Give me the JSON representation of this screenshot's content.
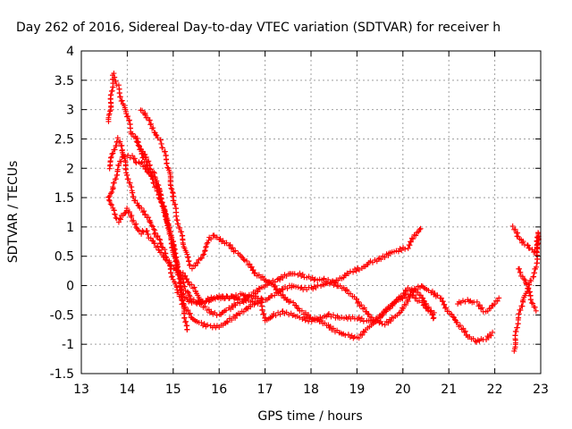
{
  "chart_data": {
    "type": "scatter",
    "title": "Day 262 of 2016, Sidereal Day-to-day VTEC variation (SDTVAR) for receiver h",
    "xlabel": "GPS time / hours",
    "ylabel": "SDTVAR / TECUs",
    "xlim": [
      13,
      23
    ],
    "ylim": [
      -1.5,
      4
    ],
    "xticks": [
      "13",
      "14",
      "15",
      "16",
      "17",
      "18",
      "19",
      "20",
      "21",
      "22",
      "23"
    ],
    "yticks": [
      "-1.5",
      "-1",
      "-0.5",
      "0",
      "0.5",
      "1",
      "1.5",
      "2",
      "2.5",
      "3",
      "3.5",
      "4"
    ],
    "grid": true,
    "marker": "+",
    "color": "#ff0000",
    "tracks": [
      [
        [
          13.6,
          2.8
        ],
        [
          13.7,
          3.6
        ],
        [
          13.8,
          3.4
        ],
        [
          13.9,
          3.1
        ],
        [
          14.0,
          2.9
        ],
        [
          14.1,
          2.6
        ],
        [
          14.2,
          2.5
        ],
        [
          14.3,
          2.3
        ],
        [
          14.4,
          2.1
        ],
        [
          14.5,
          1.9
        ],
        [
          14.6,
          1.7
        ],
        [
          14.7,
          1.5
        ],
        [
          14.8,
          1.3
        ],
        [
          14.9,
          1.0
        ],
        [
          15.0,
          0.7
        ],
        [
          15.05,
          0.5
        ],
        [
          15.1,
          0.2
        ],
        [
          15.2,
          -0.2
        ],
        [
          15.25,
          -0.5
        ],
        [
          15.3,
          -0.8
        ]
      ],
      [
        [
          13.6,
          1.5
        ],
        [
          13.7,
          1.7
        ],
        [
          13.8,
          2.0
        ],
        [
          13.9,
          2.2
        ],
        [
          14.0,
          2.2
        ],
        [
          14.1,
          2.2
        ],
        [
          14.2,
          2.1
        ],
        [
          14.3,
          2.1
        ],
        [
          14.4,
          2.0
        ],
        [
          14.5,
          1.9
        ],
        [
          14.6,
          1.8
        ],
        [
          14.7,
          1.6
        ],
        [
          14.8,
          1.3
        ],
        [
          14.9,
          1.0
        ],
        [
          15.0,
          0.6
        ],
        [
          15.1,
          0.3
        ],
        [
          15.2,
          0.1
        ],
        [
          15.3,
          -0.1
        ],
        [
          15.4,
          -0.25
        ],
        [
          15.6,
          -0.3
        ],
        [
          15.8,
          -0.25
        ],
        [
          16.0,
          -0.2
        ],
        [
          16.3,
          -0.2
        ],
        [
          16.5,
          -0.25
        ],
        [
          16.7,
          -0.15
        ],
        [
          16.9,
          -0.05
        ],
        [
          17.1,
          0.05
        ],
        [
          17.3,
          0.1
        ],
        [
          17.5,
          0.2
        ],
        [
          17.7,
          0.2
        ],
        [
          17.9,
          0.15
        ],
        [
          18.1,
          0.1
        ],
        [
          18.3,
          0.1
        ],
        [
          18.5,
          0.05
        ],
        [
          18.7,
          0.15
        ],
        [
          18.9,
          0.25
        ],
        [
          19.1,
          0.3
        ],
        [
          19.3,
          0.4
        ],
        [
          19.5,
          0.45
        ],
        [
          19.7,
          0.55
        ],
        [
          19.9,
          0.6
        ],
        [
          20.1,
          0.65
        ],
        [
          20.3,
          0.9
        ],
        [
          20.4,
          1.0
        ]
      ],
      [
        [
          13.6,
          2.0
        ],
        [
          13.7,
          2.3
        ],
        [
          13.8,
          2.5
        ],
        [
          13.9,
          2.3
        ],
        [
          14.0,
          1.9
        ],
        [
          14.1,
          1.6
        ],
        [
          14.2,
          1.4
        ],
        [
          14.3,
          1.3
        ],
        [
          14.4,
          1.2
        ],
        [
          14.5,
          1.1
        ],
        [
          14.6,
          0.9
        ],
        [
          14.7,
          0.8
        ],
        [
          14.8,
          0.6
        ],
        [
          14.9,
          0.4
        ],
        [
          15.0,
          0.1
        ],
        [
          15.1,
          -0.1
        ],
        [
          15.2,
          -0.3
        ],
        [
          15.4,
          -0.55
        ],
        [
          15.6,
          -0.65
        ],
        [
          15.8,
          -0.7
        ],
        [
          16.0,
          -0.7
        ],
        [
          16.2,
          -0.6
        ],
        [
          16.4,
          -0.5
        ],
        [
          16.6,
          -0.4
        ],
        [
          16.8,
          -0.3
        ],
        [
          17.0,
          -0.25
        ],
        [
          17.2,
          -0.15
        ],
        [
          17.4,
          -0.05
        ],
        [
          17.6,
          0.0
        ],
        [
          17.8,
          -0.05
        ],
        [
          18.0,
          -0.05
        ],
        [
          18.2,
          0.0
        ],
        [
          18.4,
          0.05
        ],
        [
          18.6,
          0.0
        ],
        [
          18.8,
          -0.1
        ],
        [
          19.0,
          -0.25
        ],
        [
          19.2,
          -0.45
        ],
        [
          19.4,
          -0.6
        ],
        [
          19.6,
          -0.65
        ],
        [
          19.8,
          -0.55
        ],
        [
          20.0,
          -0.4
        ],
        [
          20.2,
          -0.1
        ],
        [
          20.4,
          0.0
        ],
        [
          20.6,
          -0.1
        ],
        [
          20.8,
          -0.2
        ],
        [
          21.0,
          -0.45
        ],
        [
          21.2,
          -0.65
        ],
        [
          21.4,
          -0.85
        ],
        [
          21.6,
          -0.95
        ],
        [
          21.8,
          -0.9
        ],
        [
          22.0,
          -0.8
        ]
      ],
      [
        [
          13.6,
          1.5
        ],
        [
          13.7,
          1.3
        ],
        [
          13.8,
          1.1
        ],
        [
          13.9,
          1.2
        ],
        [
          14.0,
          1.3
        ],
        [
          14.1,
          1.15
        ],
        [
          14.2,
          1.0
        ],
        [
          14.3,
          0.9
        ],
        [
          14.4,
          0.95
        ],
        [
          14.5,
          0.8
        ],
        [
          14.6,
          0.7
        ],
        [
          14.7,
          0.6
        ],
        [
          14.8,
          0.5
        ],
        [
          14.9,
          0.4
        ],
        [
          15.0,
          0.3
        ],
        [
          15.2,
          0.2
        ],
        [
          15.4,
          0.0
        ],
        [
          15.5,
          -0.1
        ],
        [
          15.6,
          -0.3
        ],
        [
          15.8,
          -0.45
        ],
        [
          16.0,
          -0.5
        ],
        [
          16.2,
          -0.4
        ],
        [
          16.4,
          -0.3
        ],
        [
          16.6,
          -0.25
        ],
        [
          16.8,
          -0.3
        ]
      ],
      [
        [
          14.3,
          3.0
        ],
        [
          14.4,
          2.9
        ],
        [
          14.5,
          2.8
        ],
        [
          14.6,
          2.6
        ],
        [
          14.7,
          2.5
        ],
        [
          14.8,
          2.3
        ],
        [
          14.9,
          2.0
        ],
        [
          15.0,
          1.5
        ],
        [
          15.1,
          1.1
        ],
        [
          15.2,
          0.8
        ],
        [
          15.3,
          0.5
        ],
        [
          15.4,
          0.3
        ],
        [
          15.6,
          0.45
        ],
        [
          15.8,
          0.8
        ],
        [
          15.9,
          0.85
        ],
        [
          16.0,
          0.8
        ],
        [
          16.2,
          0.7
        ],
        [
          16.4,
          0.55
        ],
        [
          16.6,
          0.4
        ],
        [
          16.8,
          0.2
        ],
        [
          17.0,
          0.1
        ],
        [
          17.2,
          0.0
        ],
        [
          17.4,
          -0.2
        ],
        [
          17.6,
          -0.3
        ],
        [
          17.8,
          -0.45
        ],
        [
          18.0,
          -0.55
        ],
        [
          18.2,
          -0.6
        ],
        [
          18.4,
          -0.7
        ],
        [
          18.6,
          -0.8
        ],
        [
          18.8,
          -0.85
        ],
        [
          19.0,
          -0.9
        ],
        [
          19.2,
          -0.75
        ],
        [
          19.4,
          -0.6
        ],
        [
          19.6,
          -0.45
        ],
        [
          19.8,
          -0.3
        ],
        [
          20.0,
          -0.15
        ],
        [
          20.1,
          -0.05
        ],
        [
          20.3,
          -0.1
        ],
        [
          20.5,
          -0.3
        ],
        [
          20.7,
          -0.6
        ]
      ],
      [
        [
          14.2,
          2.5
        ],
        [
          14.3,
          2.3
        ],
        [
          14.4,
          2.2
        ],
        [
          14.5,
          2.0
        ],
        [
          14.6,
          1.9
        ],
        [
          14.7,
          1.6
        ],
        [
          14.8,
          1.3
        ],
        [
          14.9,
          1.0
        ],
        [
          15.0,
          0.7
        ],
        [
          15.1,
          0.3
        ],
        [
          15.2,
          -0.1
        ],
        [
          15.3,
          -0.25
        ],
        [
          15.5,
          -0.3
        ],
        [
          15.7,
          -0.25
        ],
        [
          15.9,
          -0.2
        ],
        [
          16.1,
          -0.2
        ],
        [
          16.3,
          -0.2
        ],
        [
          16.5,
          -0.15
        ],
        [
          16.7,
          -0.2
        ],
        [
          16.9,
          -0.2
        ],
        [
          17.0,
          -0.6
        ],
        [
          17.2,
          -0.5
        ],
        [
          17.4,
          -0.45
        ],
        [
          17.6,
          -0.5
        ],
        [
          17.8,
          -0.55
        ],
        [
          18.0,
          -0.6
        ],
        [
          18.2,
          -0.55
        ],
        [
          18.4,
          -0.5
        ],
        [
          18.6,
          -0.55
        ],
        [
          18.8,
          -0.55
        ],
        [
          19.0,
          -0.55
        ],
        [
          19.2,
          -0.6
        ],
        [
          19.4,
          -0.6
        ],
        [
          19.6,
          -0.45
        ],
        [
          19.8,
          -0.3
        ],
        [
          20.0,
          -0.2
        ],
        [
          20.2,
          -0.15
        ],
        [
          20.4,
          -0.3
        ],
        [
          20.6,
          -0.45
        ],
        [
          20.7,
          -0.5
        ]
      ],
      [
        [
          21.2,
          -0.3
        ],
        [
          21.4,
          -0.25
        ],
        [
          21.6,
          -0.3
        ],
        [
          21.8,
          -0.45
        ],
        [
          22.0,
          -0.3
        ],
        [
          22.1,
          -0.2
        ]
      ],
      [
        [
          22.4,
          1.0
        ],
        [
          22.5,
          0.85
        ],
        [
          22.6,
          0.75
        ],
        [
          22.7,
          0.7
        ],
        [
          22.8,
          0.6
        ],
        [
          22.9,
          0.55
        ],
        [
          22.95,
          0.9
        ],
        [
          22.9,
          0.3
        ],
        [
          22.8,
          0.1
        ],
        [
          22.7,
          -0.1
        ],
        [
          22.6,
          -0.3
        ],
        [
          22.5,
          -0.6
        ],
        [
          22.45,
          -0.9
        ],
        [
          22.42,
          -1.15
        ]
      ],
      [
        [
          22.5,
          0.3
        ],
        [
          22.6,
          0.15
        ],
        [
          22.7,
          0.0
        ],
        [
          22.8,
          -0.25
        ],
        [
          22.9,
          -0.45
        ]
      ]
    ]
  }
}
